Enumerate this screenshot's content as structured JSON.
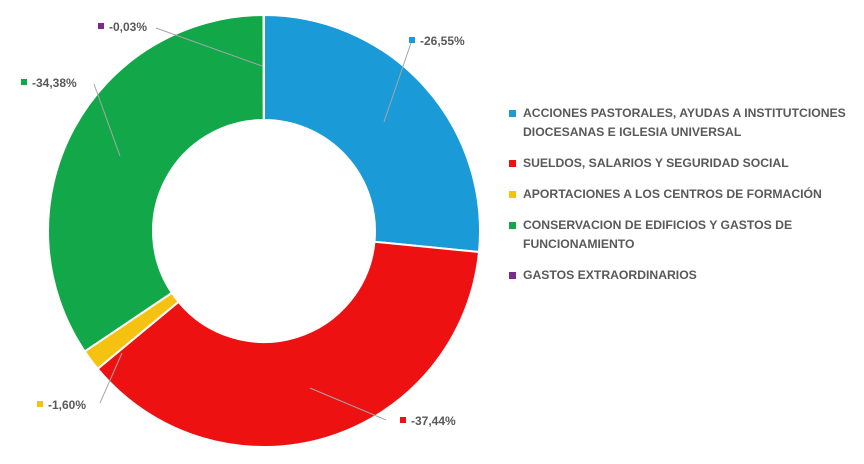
{
  "chart_data": {
    "type": "pie",
    "donut": true,
    "legend_position": "right",
    "series": [
      {
        "name": "ACCIONES PASTORALES, AYUDAS A INSTITUTCIONES DIOCESANAS E IGLESIA UNIVERSAL",
        "value": -26.55,
        "label": "-26,55%",
        "color": "#1a9ad6"
      },
      {
        "name": "SUELDOS, SALARIOS Y SEGURIDAD SOCIAL",
        "value": -37.44,
        "label": "-37,44%",
        "color": "#ee1111"
      },
      {
        "name": "APORTACIONES A  LOS CENTROS DE FORMACIÓN",
        "value": -1.6,
        "label": "-1,60%",
        "color": "#f5c211"
      },
      {
        "name": "CONSERVACION DE EDIFICIOS Y GASTOS DE FUNCIONAMIENTO",
        "value": -34.38,
        "label": "-34,38%",
        "color": "#12a84a"
      },
      {
        "name": "GASTOS EXTRAORDINARIOS",
        "value": -0.03,
        "label": "-0,03%",
        "color": "#7b2a8c"
      }
    ]
  }
}
